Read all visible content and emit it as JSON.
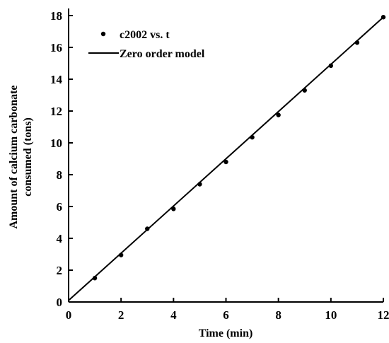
{
  "chart_data": {
    "type": "scatter",
    "title": "",
    "xlabel": "Time (min)",
    "ylabel": [
      "Amount of calcium carbonate",
      "consumed (tons)"
    ],
    "xlim": [
      0,
      12
    ],
    "ylim": [
      0,
      18
    ],
    "xticks": [
      "0",
      "2",
      "4",
      "6",
      "8",
      "10",
      "12"
    ],
    "yticks": [
      "0",
      "2",
      "4",
      "6",
      "8",
      "10",
      "12",
      "14",
      "16",
      "18"
    ],
    "grid": false,
    "legend_position": "top-left",
    "series": [
      {
        "name": "c2002 vs. t",
        "kind": "points",
        "color": "#000000",
        "x": [
          1,
          2,
          3,
          4,
          5,
          6,
          7,
          8,
          9,
          10,
          11,
          12
        ],
        "y": [
          1.5,
          2.95,
          4.6,
          5.85,
          7.4,
          8.8,
          10.35,
          11.75,
          13.3,
          14.85,
          16.3,
          17.9
        ]
      },
      {
        "name": "Zero order model",
        "kind": "line",
        "color": "#000000",
        "x": [
          0,
          12
        ],
        "y": [
          0.1,
          17.9
        ]
      }
    ]
  }
}
